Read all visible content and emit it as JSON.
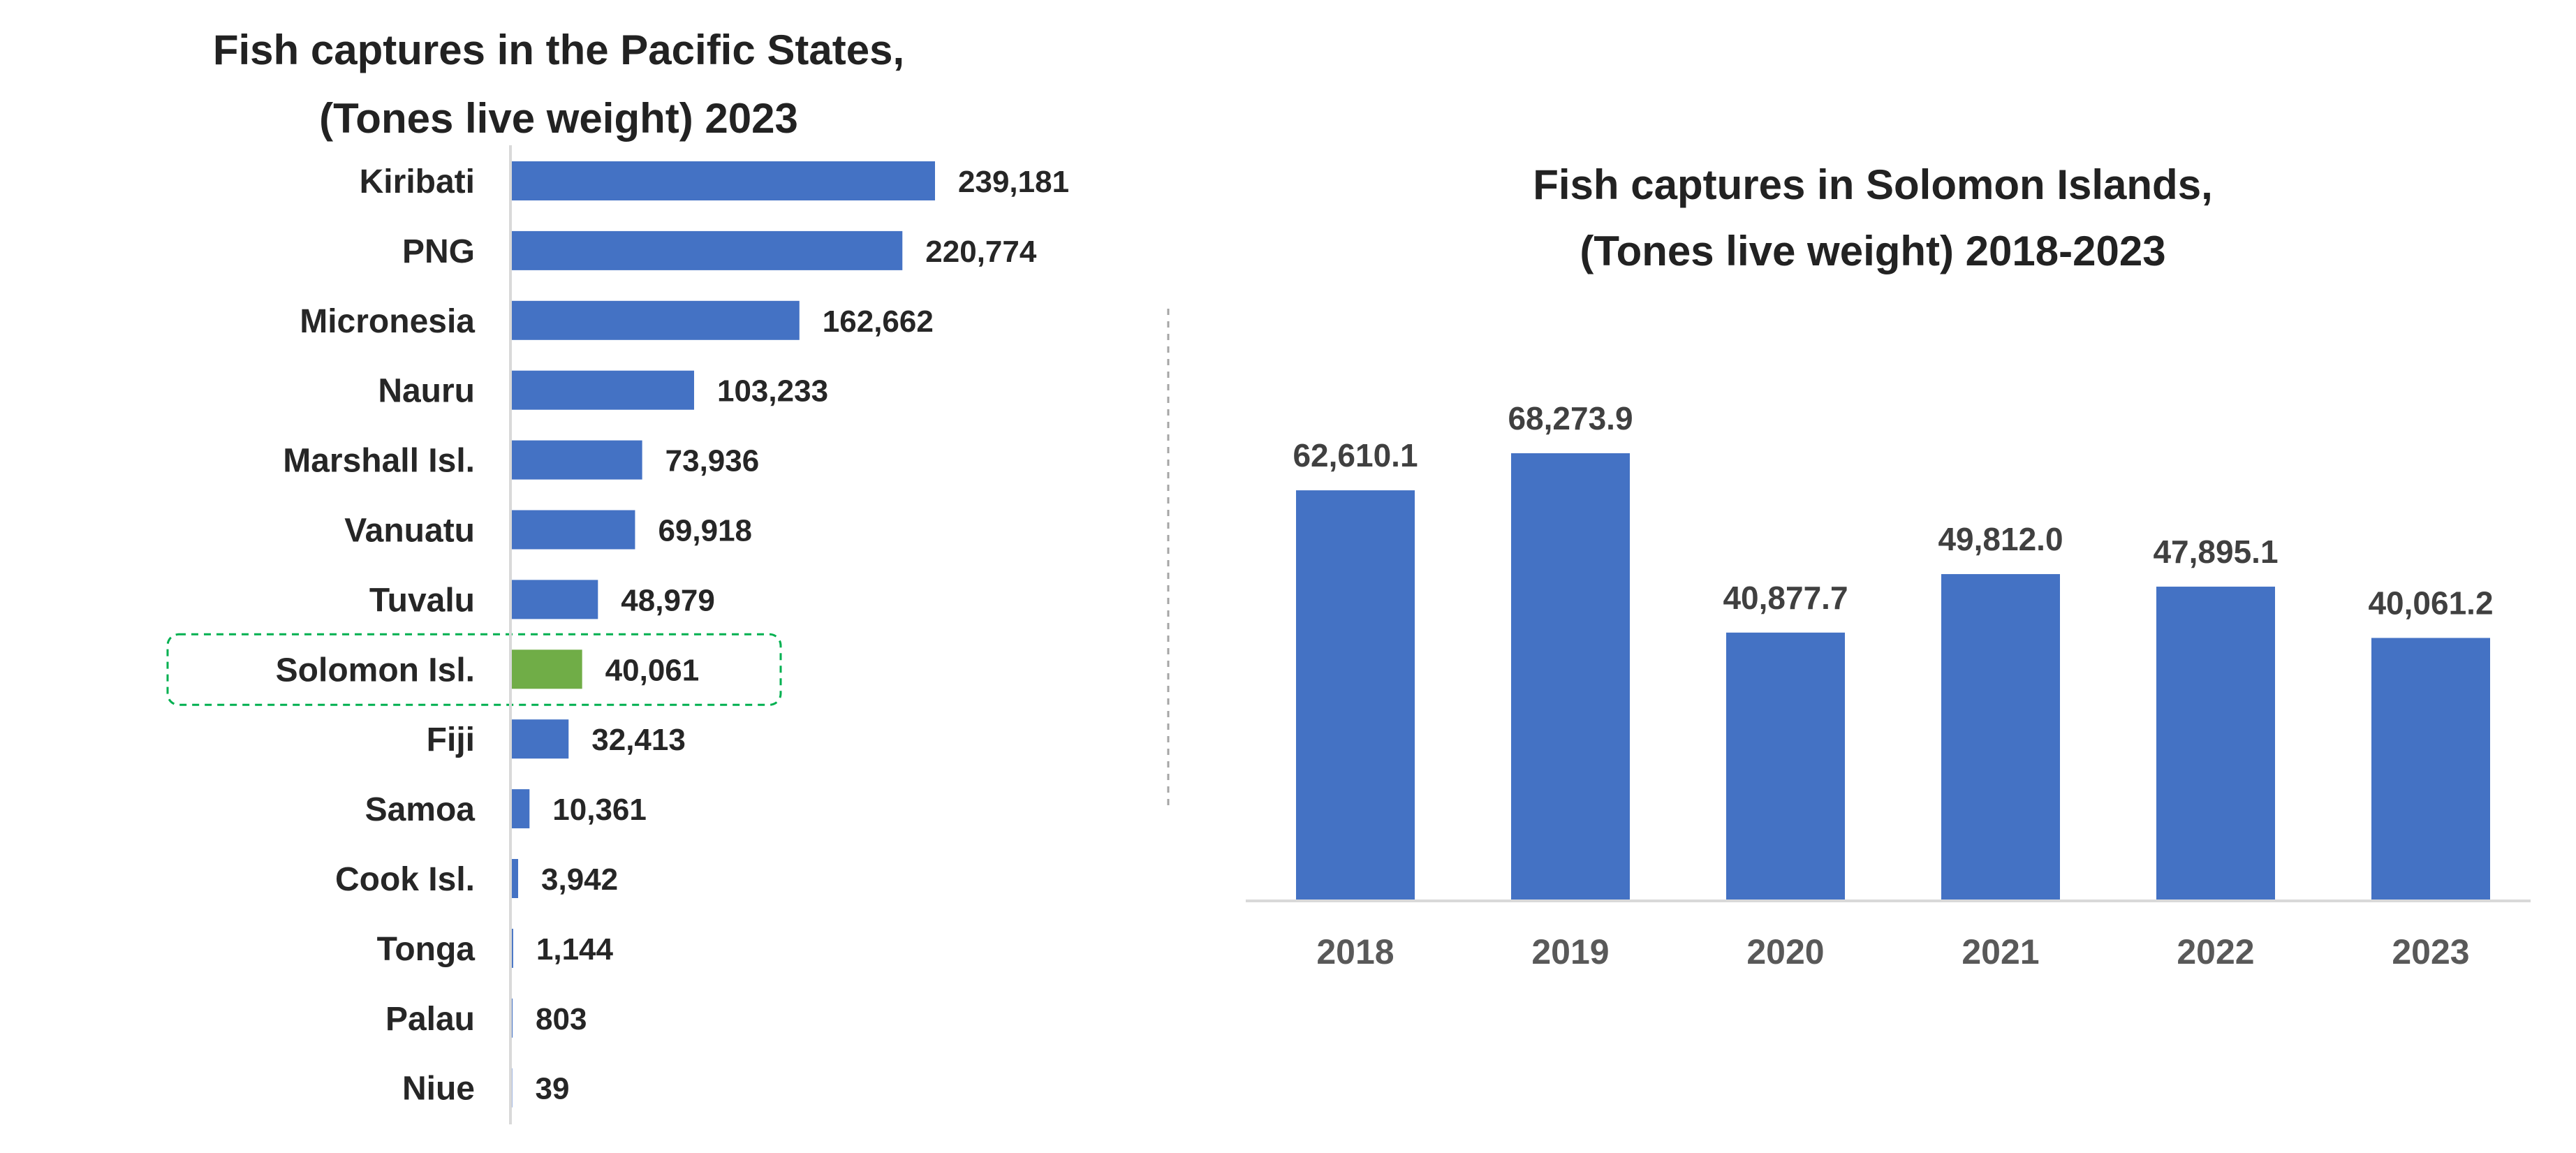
{
  "colors": {
    "bar": "#4472C4",
    "highlight": "#70AD47",
    "highlight_box": "#00B050",
    "axis": "#D9D9D9",
    "divider": "#A6A6A6"
  },
  "chart_data": [
    {
      "type": "bar",
      "orientation": "horizontal",
      "title": "Fish captures in the Pacific States,",
      "title_line2": "(Tones live weight) 2023",
      "xlabel": "",
      "ylabel": "",
      "highlight": "Solomon Isl.",
      "categories": [
        "Kiribati",
        "PNG",
        "Micronesia",
        "Nauru",
        "Marshall Isl.",
        "Vanuatu",
        "Tuvalu",
        "Solomon Isl.",
        "Fiji",
        "Samoa",
        "Cook Isl.",
        "Tonga",
        "Palau",
        "Niue"
      ],
      "values": [
        239181,
        220774,
        162662,
        103233,
        73936,
        69918,
        48979,
        40061,
        32413,
        10361,
        3942,
        1144,
        803,
        39
      ],
      "labels": [
        "239,181",
        "220,774",
        "162,662",
        "103,233",
        "73,936",
        "69,918",
        "48,979",
        "40,061",
        "32,413",
        "10,361",
        "3,942",
        "1,144",
        "803",
        "39"
      ],
      "xlim": [
        0,
        239181
      ]
    },
    {
      "type": "bar",
      "orientation": "vertical",
      "title": "Fish captures in Solomon Islands,",
      "title_line2": "(Tones live weight) 2018-2023",
      "xlabel": "",
      "ylabel": "",
      "categories": [
        "2018",
        "2019",
        "2020",
        "2021",
        "2022",
        "2023"
      ],
      "values": [
        62610.1,
        68273.9,
        40877.7,
        49812.0,
        47895.1,
        40061.2
      ],
      "labels": [
        "62,610.1",
        "68,273.9",
        "40,877.7",
        "49,812.0",
        "47,895.1",
        "40,061.2"
      ],
      "ylim": [
        0,
        68273.9
      ]
    }
  ]
}
